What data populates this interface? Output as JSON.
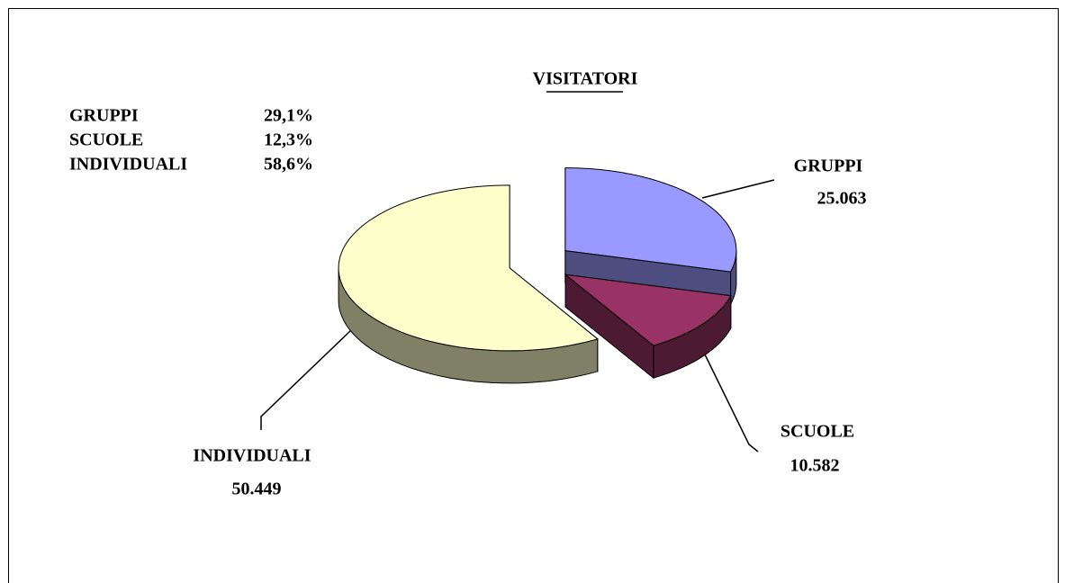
{
  "chart_data": {
    "type": "pie",
    "title": "VISITATORI",
    "categories": [
      "GRUPPI",
      "SCUOLE",
      "INDIVIDUALI"
    ],
    "values": [
      25063,
      10582,
      50449
    ],
    "value_labels": [
      "25.063",
      "10.582",
      "50.449"
    ],
    "colors": [
      "#9999ff",
      "#993366",
      "#ffffcc"
    ],
    "percentage_labels": [
      "29,1%",
      "12,3%",
      "58,6%"
    ]
  }
}
